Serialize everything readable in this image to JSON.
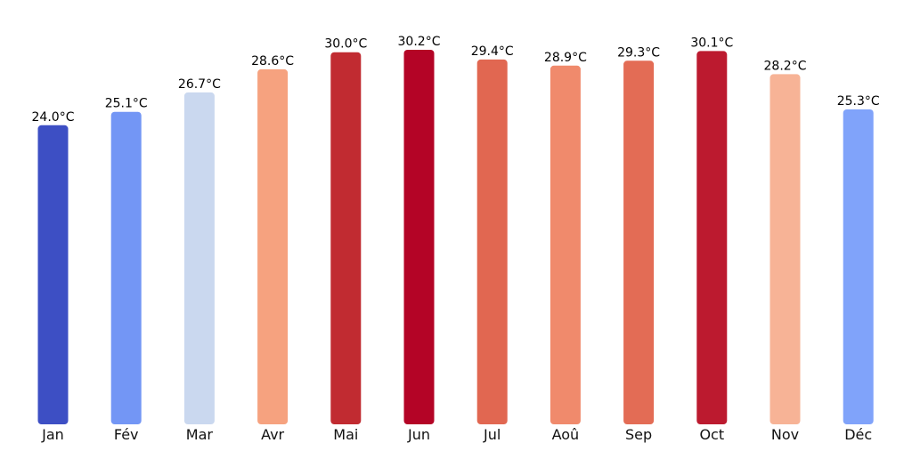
{
  "chart_data": {
    "type": "bar",
    "title": "",
    "xlabel": "",
    "ylabel": "",
    "ylim": [
      0,
      30.2
    ],
    "grid": false,
    "legend": "none",
    "unit": "°C",
    "categories": [
      "Jan",
      "Fév",
      "Mar",
      "Avr",
      "Mai",
      "Jun",
      "Jul",
      "Aoû",
      "Sep",
      "Oct",
      "Nov",
      "Déc"
    ],
    "values": [
      24.0,
      25.1,
      26.7,
      28.6,
      30.0,
      30.2,
      29.4,
      28.9,
      29.3,
      30.1,
      28.2,
      25.3
    ],
    "labels": [
      "24.0°C",
      "25.1°C",
      "26.7°C",
      "28.6°C",
      "30.0°C",
      "30.2°C",
      "29.4°C",
      "28.9°C",
      "29.3°C",
      "30.1°C",
      "28.2°C",
      "25.3°C"
    ],
    "colors": [
      "#3d4fc4",
      "#7396f5",
      "#cad8ef",
      "#f6a27f",
      "#c12b31",
      "#b40426",
      "#e16751",
      "#f08a6c",
      "#e36c55",
      "#bc1a2f",
      "#f7b396",
      "#80a3fa"
    ]
  }
}
